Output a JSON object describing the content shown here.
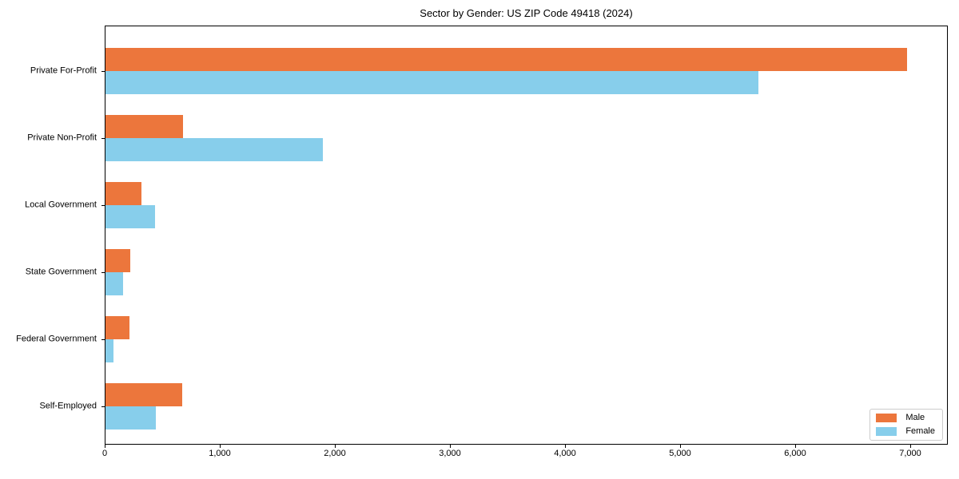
{
  "chart_data": {
    "type": "bar",
    "orientation": "horizontal",
    "title": "Sector by Gender: US ZIP Code 49418 (2024)",
    "categories": [
      "Private For-Profit",
      "Private Non-Profit",
      "Local Government",
      "State Government",
      "Federal Government",
      "Self-Employed"
    ],
    "series": [
      {
        "name": "Male",
        "color": "#ec763c",
        "values": [
          6960,
          670,
          315,
          215,
          205,
          665
        ]
      },
      {
        "name": "Female",
        "color": "#87ceeb",
        "values": [
          5670,
          1890,
          430,
          150,
          70,
          435
        ]
      }
    ],
    "xlabel": "",
    "ylabel": "",
    "xlim": [
      0,
      7310
    ],
    "xticks": [
      0,
      1000,
      2000,
      3000,
      4000,
      5000,
      6000,
      7000
    ],
    "xtick_labels": [
      "0",
      "1,000",
      "2,000",
      "3,000",
      "4,000",
      "5,000",
      "6,000",
      "7,000"
    ],
    "legend_position": "lower right",
    "grid": false,
    "bar_colors": {
      "male": "#ec763c",
      "female": "#87ceeb"
    }
  }
}
